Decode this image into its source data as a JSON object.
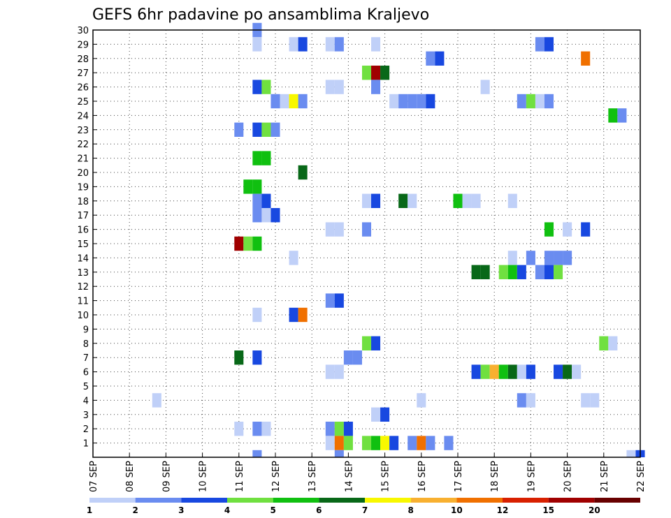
{
  "chart_data": {
    "type": "heatmap",
    "title": "GEFS 6hr padavine po ansamblima Kraljevo",
    "xlabel": "",
    "ylabel": "",
    "x_tick_labels": [
      "07 SEP",
      "08 SEP",
      "09 SEP",
      "10 SEP",
      "11 SEP",
      "12 SEP",
      "13 SEP",
      "14 SEP",
      "15 SEP",
      "16 SEP",
      "17 SEP",
      "18 SEP",
      "19 SEP",
      "20 SEP",
      "21 SEP",
      "22 SEP"
    ],
    "y_tick_labels": [
      "1",
      "2",
      "3",
      "4",
      "5",
      "6",
      "7",
      "8",
      "9",
      "10",
      "11",
      "12",
      "13",
      "14",
      "15",
      "16",
      "17",
      "18",
      "19",
      "20",
      "21",
      "22",
      "23",
      "24",
      "25",
      "26",
      "27",
      "28",
      "29",
      "30"
    ],
    "xlim_days": [
      7,
      22
    ],
    "ylim_members": [
      0,
      30
    ],
    "grid": true,
    "legend": {
      "position": "bottom",
      "labels": [
        "1",
        "2",
        "3",
        "4",
        "5",
        "6",
        "7",
        "8",
        "10",
        "12",
        "15",
        "20"
      ],
      "colors": [
        "#c0d0f8",
        "#6a8cf0",
        "#1848e0",
        "#70e040",
        "#10c010",
        "#086818",
        "#f8f800",
        "#f8b030",
        "#f07000",
        "#d82000",
        "#a00000",
        "#680000"
      ]
    },
    "points": [
      {
        "member": 30,
        "day": 11.5,
        "value": 2
      },
      {
        "member": 29,
        "day": 11.5,
        "value": 1
      },
      {
        "member": 29,
        "day": 12.5,
        "value": 1
      },
      {
        "member": 29,
        "day": 12.75,
        "value": 3
      },
      {
        "member": 29,
        "day": 13.5,
        "value": 1
      },
      {
        "member": 29,
        "day": 13.75,
        "value": 2
      },
      {
        "member": 29,
        "day": 14.75,
        "value": 1
      },
      {
        "member": 29,
        "day": 19.25,
        "value": 2
      },
      {
        "member": 29,
        "day": 19.5,
        "value": 3
      },
      {
        "member": 28,
        "day": 16.25,
        "value": 2
      },
      {
        "member": 28,
        "day": 16.5,
        "value": 3
      },
      {
        "member": 28,
        "day": 20.5,
        "value": 10
      },
      {
        "member": 27,
        "day": 14.5,
        "value": 4
      },
      {
        "member": 27,
        "day": 14.75,
        "value": 15
      },
      {
        "member": 27,
        "day": 15,
        "value": 6
      },
      {
        "member": 26,
        "day": 11.5,
        "value": 3
      },
      {
        "member": 26,
        "day": 11.75,
        "value": 4
      },
      {
        "member": 26,
        "day": 13.5,
        "value": 1
      },
      {
        "member": 26,
        "day": 13.75,
        "value": 1
      },
      {
        "member": 26,
        "day": 14.75,
        "value": 2
      },
      {
        "member": 26,
        "day": 17.75,
        "value": 1
      },
      {
        "member": 25,
        "day": 12,
        "value": 2
      },
      {
        "member": 25,
        "day": 12.25,
        "value": 1
      },
      {
        "member": 25,
        "day": 12.5,
        "value": 7
      },
      {
        "member": 25,
        "day": 12.75,
        "value": 2
      },
      {
        "member": 25,
        "day": 15.25,
        "value": 1
      },
      {
        "member": 25,
        "day": 15.5,
        "value": 2
      },
      {
        "member": 25,
        "day": 15.75,
        "value": 2
      },
      {
        "member": 25,
        "day": 16,
        "value": 2
      },
      {
        "member": 25,
        "day": 16.25,
        "value": 3
      },
      {
        "member": 25,
        "day": 18.75,
        "value": 2
      },
      {
        "member": 25,
        "day": 19,
        "value": 4
      },
      {
        "member": 25,
        "day": 19.25,
        "value": 1
      },
      {
        "member": 25,
        "day": 19.5,
        "value": 2
      },
      {
        "member": 24,
        "day": 21.25,
        "value": 5
      },
      {
        "member": 24,
        "day": 21.5,
        "value": 2
      },
      {
        "member": 23,
        "day": 11,
        "value": 2
      },
      {
        "member": 23,
        "day": 11.5,
        "value": 3
      },
      {
        "member": 23,
        "day": 11.75,
        "value": 4
      },
      {
        "member": 23,
        "day": 12,
        "value": 2
      },
      {
        "member": 21,
        "day": 11.5,
        "value": 5
      },
      {
        "member": 21,
        "day": 11.75,
        "value": 5
      },
      {
        "member": 20,
        "day": 12.75,
        "value": 6
      },
      {
        "member": 19,
        "day": 11.25,
        "value": 5
      },
      {
        "member": 19,
        "day": 11.5,
        "value": 5
      },
      {
        "member": 18,
        "day": 11.5,
        "value": 2
      },
      {
        "member": 18,
        "day": 11.75,
        "value": 3
      },
      {
        "member": 18,
        "day": 14.5,
        "value": 1
      },
      {
        "member": 18,
        "day": 14.75,
        "value": 3
      },
      {
        "member": 18,
        "day": 15.5,
        "value": 6
      },
      {
        "member": 18,
        "day": 15.75,
        "value": 1
      },
      {
        "member": 18,
        "day": 17,
        "value": 5
      },
      {
        "member": 18,
        "day": 17.25,
        "value": 1
      },
      {
        "member": 18,
        "day": 17.5,
        "value": 1
      },
      {
        "member": 18,
        "day": 18.5,
        "value": 1
      },
      {
        "member": 17,
        "day": 11.5,
        "value": 2
      },
      {
        "member": 17,
        "day": 11.75,
        "value": 1
      },
      {
        "member": 17,
        "day": 12,
        "value": 3
      },
      {
        "member": 16,
        "day": 13.5,
        "value": 1
      },
      {
        "member": 16,
        "day": 13.75,
        "value": 1
      },
      {
        "member": 16,
        "day": 14.5,
        "value": 2
      },
      {
        "member": 16,
        "day": 19.5,
        "value": 5
      },
      {
        "member": 16,
        "day": 20,
        "value": 1
      },
      {
        "member": 16,
        "day": 20.5,
        "value": 3
      },
      {
        "member": 15,
        "day": 11,
        "value": 15
      },
      {
        "member": 15,
        "day": 11.25,
        "value": 4
      },
      {
        "member": 15,
        "day": 11.5,
        "value": 5
      },
      {
        "member": 14,
        "day": 12.5,
        "value": 1
      },
      {
        "member": 14,
        "day": 18.5,
        "value": 1
      },
      {
        "member": 14,
        "day": 19,
        "value": 2
      },
      {
        "member": 14,
        "day": 19.5,
        "value": 2
      },
      {
        "member": 14,
        "day": 19.75,
        "value": 2
      },
      {
        "member": 14,
        "day": 20,
        "value": 2
      },
      {
        "member": 13,
        "day": 17.5,
        "value": 6
      },
      {
        "member": 13,
        "day": 17.75,
        "value": 6
      },
      {
        "member": 13,
        "day": 18.25,
        "value": 4
      },
      {
        "member": 13,
        "day": 18.5,
        "value": 5
      },
      {
        "member": 13,
        "day": 18.75,
        "value": 3
      },
      {
        "member": 13,
        "day": 19.25,
        "value": 2
      },
      {
        "member": 13,
        "day": 19.5,
        "value": 3
      },
      {
        "member": 13,
        "day": 19.75,
        "value": 4
      },
      {
        "member": 11,
        "day": 13.5,
        "value": 2
      },
      {
        "member": 11,
        "day": 13.75,
        "value": 3
      },
      {
        "member": 10,
        "day": 11.5,
        "value": 1
      },
      {
        "member": 10,
        "day": 12.5,
        "value": 3
      },
      {
        "member": 10,
        "day": 12.75,
        "value": 10
      },
      {
        "member": 8,
        "day": 14.5,
        "value": 4
      },
      {
        "member": 8,
        "day": 14.75,
        "value": 3
      },
      {
        "member": 8,
        "day": 21,
        "value": 4
      },
      {
        "member": 8,
        "day": 21.25,
        "value": 1
      },
      {
        "member": 7,
        "day": 11,
        "value": 6
      },
      {
        "member": 7,
        "day": 11.5,
        "value": 3
      },
      {
        "member": 7,
        "day": 14,
        "value": 2
      },
      {
        "member": 7,
        "day": 14.25,
        "value": 2
      },
      {
        "member": 6,
        "day": 13.5,
        "value": 1
      },
      {
        "member": 6,
        "day": 13.75,
        "value": 1
      },
      {
        "member": 6,
        "day": 17.5,
        "value": 3
      },
      {
        "member": 6,
        "day": 17.75,
        "value": 4
      },
      {
        "member": 6,
        "day": 18,
        "value": 8
      },
      {
        "member": 6,
        "day": 18.25,
        "value": 5
      },
      {
        "member": 6,
        "day": 18.5,
        "value": 6
      },
      {
        "member": 6,
        "day": 18.75,
        "value": 1
      },
      {
        "member": 6,
        "day": 19,
        "value": 3
      },
      {
        "member": 6,
        "day": 19.75,
        "value": 3
      },
      {
        "member": 6,
        "day": 20,
        "value": 6
      },
      {
        "member": 6,
        "day": 20.25,
        "value": 1
      },
      {
        "member": 4,
        "day": 8.75,
        "value": 1
      },
      {
        "member": 4,
        "day": 16,
        "value": 1
      },
      {
        "member": 4,
        "day": 18.75,
        "value": 2
      },
      {
        "member": 4,
        "day": 19,
        "value": 1
      },
      {
        "member": 4,
        "day": 20.5,
        "value": 1
      },
      {
        "member": 4,
        "day": 20.75,
        "value": 1
      },
      {
        "member": 3,
        "day": 14.75,
        "value": 1
      },
      {
        "member": 3,
        "day": 15,
        "value": 3
      },
      {
        "member": 2,
        "day": 11,
        "value": 1
      },
      {
        "member": 2,
        "day": 11.5,
        "value": 2
      },
      {
        "member": 2,
        "day": 11.75,
        "value": 1
      },
      {
        "member": 2,
        "day": 13.5,
        "value": 2
      },
      {
        "member": 2,
        "day": 13.75,
        "value": 4
      },
      {
        "member": 2,
        "day": 14,
        "value": 3
      },
      {
        "member": 1,
        "day": 13.5,
        "value": 1
      },
      {
        "member": 1,
        "day": 13.75,
        "value": 10
      },
      {
        "member": 1,
        "day": 14,
        "value": 4
      },
      {
        "member": 1,
        "day": 14.5,
        "value": 4
      },
      {
        "member": 1,
        "day": 14.75,
        "value": 5
      },
      {
        "member": 1,
        "day": 15,
        "value": 7
      },
      {
        "member": 1,
        "day": 15.25,
        "value": 3
      },
      {
        "member": 1,
        "day": 15.75,
        "value": 2
      },
      {
        "member": 1,
        "day": 16,
        "value": 10
      },
      {
        "member": 1,
        "day": 16.25,
        "value": 2
      },
      {
        "member": 1,
        "day": 16.75,
        "value": 2
      },
      {
        "member": 0,
        "day": 11.5,
        "value": 2
      },
      {
        "member": 0,
        "day": 13.75,
        "value": 2
      },
      {
        "member": 0,
        "day": 21.75,
        "value": 1
      },
      {
        "member": 0,
        "day": 22,
        "value": 3
      }
    ]
  }
}
